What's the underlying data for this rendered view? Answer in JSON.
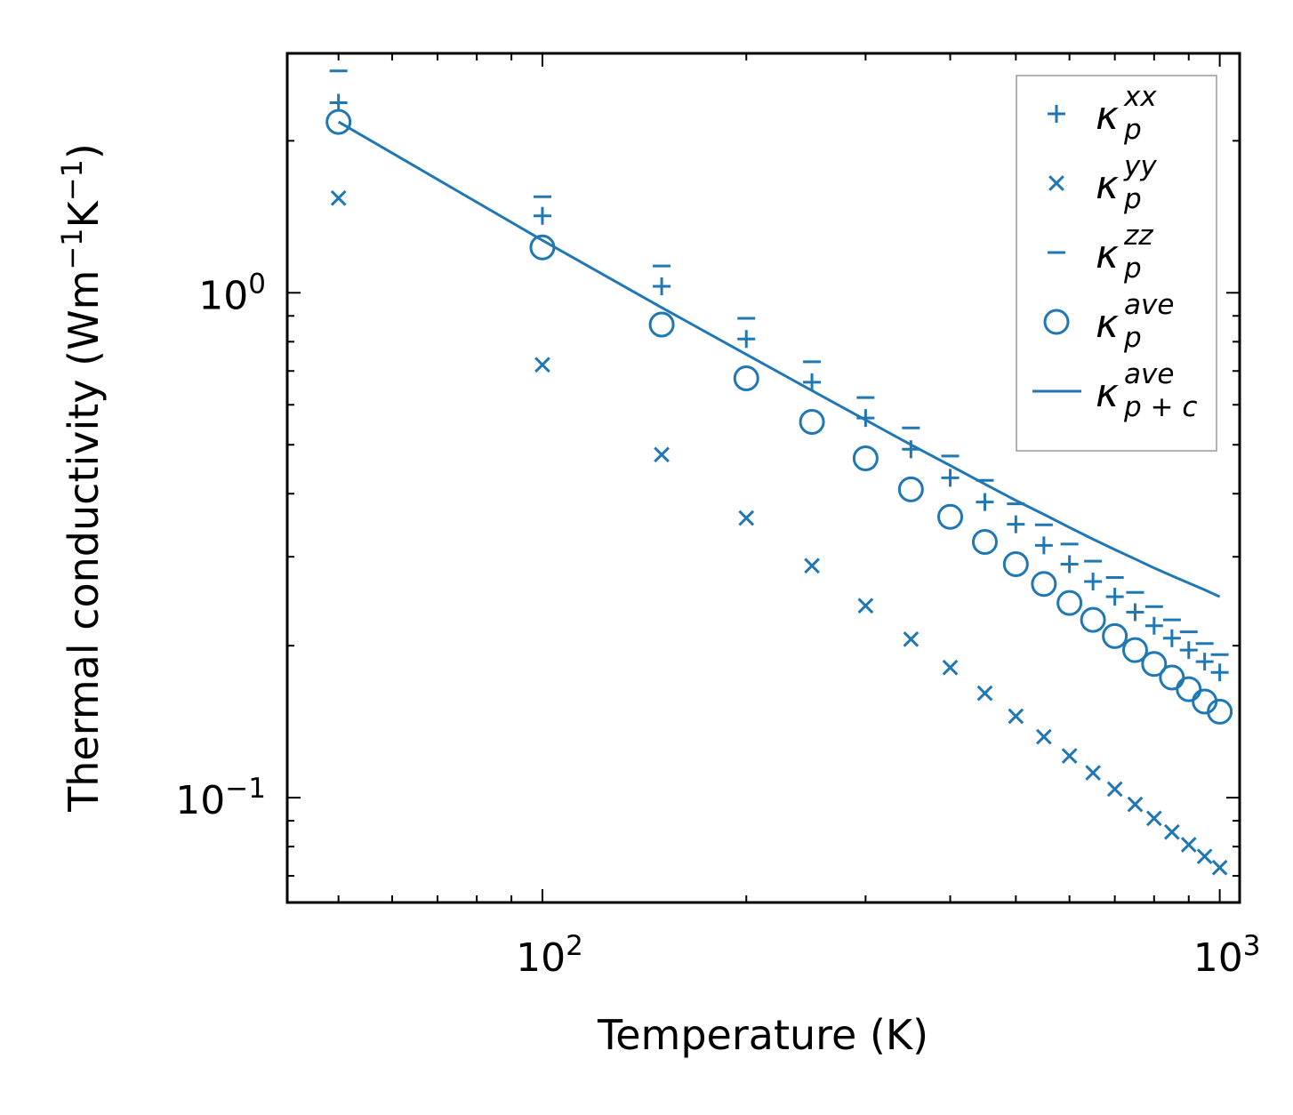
{
  "chart_data": {
    "type": "scatter",
    "xscale": "log",
    "yscale": "log",
    "xlabel": "Temperature (K)",
    "ylabel": "Thermal conductivity (Wm",
    "ylabel_parts": [
      "Thermal conductivity (Wm",
      "−1",
      "K",
      "−1",
      ")"
    ],
    "xlim": [
      42,
      1070
    ],
    "ylim": [
      0.062,
      2.98
    ],
    "x_ticks": [
      {
        "value": 100,
        "base": "10",
        "exp": "2"
      },
      {
        "value": 1000,
        "base": "10",
        "exp": "3"
      }
    ],
    "y_ticks": [
      {
        "value": 0.1,
        "base": "10",
        "exp": "−1"
      },
      {
        "value": 1,
        "base": "10",
        "exp": "0"
      }
    ],
    "color": "#1f77b4",
    "series": [
      {
        "name": "kappa_p_xx",
        "sym": "κ",
        "sub": "p",
        "sup": "xx",
        "marker": "plus",
        "x": [
          50,
          100,
          150,
          200,
          250,
          300,
          350,
          400,
          450,
          500,
          550,
          600,
          650,
          700,
          750,
          800,
          850,
          900,
          950,
          1000
        ],
        "y": [
          2.38,
          1.42,
          1.03,
          0.81,
          0.665,
          0.565,
          0.49,
          0.43,
          0.385,
          0.348,
          0.316,
          0.29,
          0.268,
          0.25,
          0.233,
          0.219,
          0.207,
          0.196,
          0.186,
          0.177
        ]
      },
      {
        "name": "kappa_p_yy",
        "sym": "κ",
        "sub": "p",
        "sup": "yy",
        "marker": "x",
        "x": [
          50,
          100,
          150,
          200,
          250,
          300,
          350,
          400,
          450,
          500,
          550,
          600,
          650,
          700,
          750,
          800,
          850,
          900,
          950,
          1000
        ],
        "y": [
          1.54,
          0.72,
          0.478,
          0.358,
          0.288,
          0.24,
          0.206,
          0.181,
          0.161,
          0.145,
          0.132,
          0.121,
          0.112,
          0.104,
          0.097,
          0.091,
          0.0855,
          0.0807,
          0.0765,
          0.0727
        ]
      },
      {
        "name": "kappa_p_zz",
        "sym": "κ",
        "sub": "p",
        "sup": "zz",
        "marker": "minus",
        "x": [
          50,
          100,
          150,
          200,
          250,
          300,
          350,
          400,
          450,
          500,
          550,
          600,
          650,
          700,
          750,
          800,
          850,
          900,
          950,
          1000
        ],
        "y": [
          2.75,
          1.55,
          1.13,
          0.89,
          0.73,
          0.62,
          0.54,
          0.475,
          0.425,
          0.382,
          0.347,
          0.318,
          0.294,
          0.273,
          0.255,
          0.239,
          0.225,
          0.213,
          0.202,
          0.192
        ]
      },
      {
        "name": "kappa_p_ave",
        "sym": "κ",
        "sub": "p",
        "sup": "ave",
        "marker": "circle",
        "x": [
          50,
          100,
          150,
          200,
          250,
          300,
          350,
          400,
          450,
          500,
          550,
          600,
          650,
          700,
          750,
          800,
          850,
          900,
          950,
          1000
        ],
        "y": [
          2.18,
          1.23,
          0.865,
          0.677,
          0.555,
          0.47,
          0.408,
          0.36,
          0.321,
          0.29,
          0.265,
          0.243,
          0.225,
          0.209,
          0.196,
          0.184,
          0.173,
          0.164,
          0.155,
          0.148
        ]
      },
      {
        "name": "kappa_pc_ave",
        "sym": "κ",
        "sub": "p + c",
        "sup": "ave",
        "marker": "line",
        "x": [
          50,
          100,
          150,
          200,
          250,
          300,
          350,
          400,
          450,
          500,
          550,
          600,
          650,
          700,
          750,
          800,
          850,
          900,
          950,
          1000
        ],
        "y": [
          2.18,
          1.27,
          0.935,
          0.755,
          0.64,
          0.56,
          0.5,
          0.455,
          0.418,
          0.388,
          0.364,
          0.343,
          0.325,
          0.31,
          0.297,
          0.285,
          0.275,
          0.266,
          0.258,
          0.25
        ]
      }
    ],
    "legend_position": "upper right"
  }
}
